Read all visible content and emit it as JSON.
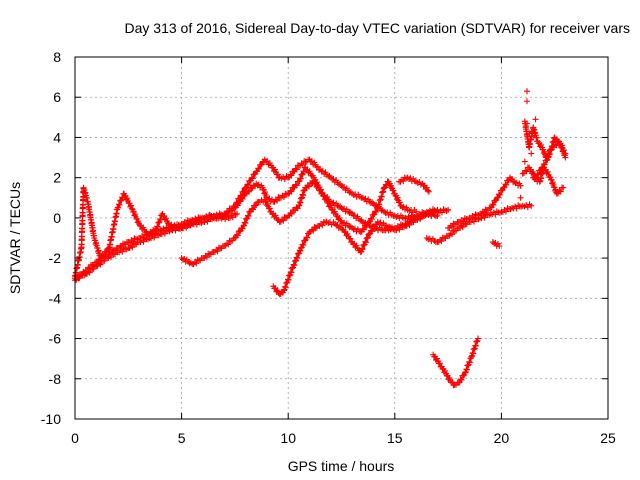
{
  "chart_data": {
    "type": "scatter",
    "title": "Day 313 of 2016, Sidereal Day-to-day VTEC variation (SDTVAR) for receiver vars",
    "xlabel": "GPS time / hours",
    "ylabel": "SDTVAR / TECUs",
    "xlim": [
      0,
      25
    ],
    "ylim": [
      -10,
      8
    ],
    "xticks": [
      0,
      5,
      10,
      15,
      20,
      25
    ],
    "yticks": [
      -10,
      -8,
      -6,
      -4,
      -2,
      0,
      2,
      4,
      6,
      8
    ],
    "grid": true,
    "marker": "+",
    "color": "#ff0000",
    "tracks": [
      [
        [
          0.0,
          -3.0
        ],
        [
          0.5,
          -2.8
        ],
        [
          1.0,
          -2.4
        ],
        [
          1.5,
          -2.0
        ],
        [
          2.0,
          -1.7
        ],
        [
          2.5,
          -1.5
        ],
        [
          3.0,
          -1.2
        ],
        [
          3.5,
          -1.0
        ],
        [
          4.0,
          -0.8
        ],
        [
          4.5,
          -0.6
        ],
        [
          5.0,
          -0.5
        ],
        [
          5.5,
          -0.3
        ],
        [
          6.0,
          -0.2
        ],
        [
          6.5,
          0.0
        ],
        [
          7.0,
          0.1
        ],
        [
          7.5,
          0.5
        ],
        [
          8.0,
          1.2
        ],
        [
          8.5,
          1.7
        ],
        [
          8.8,
          1.5
        ],
        [
          9.0,
          1.0
        ],
        [
          9.3,
          0.8
        ],
        [
          9.6,
          1.0
        ],
        [
          10.0,
          1.2
        ],
        [
          10.5,
          1.8
        ],
        [
          10.8,
          2.5
        ],
        [
          11.2,
          2.0
        ],
        [
          11.6,
          1.2
        ],
        [
          12.0,
          0.8
        ],
        [
          12.5,
          0.5
        ],
        [
          13.0,
          0.2
        ],
        [
          13.5,
          -0.2
        ],
        [
          14.0,
          -0.5
        ],
        [
          14.5,
          -0.6
        ],
        [
          15.0,
          -0.5
        ],
        [
          15.5,
          -0.3
        ],
        [
          16.0,
          0.0
        ],
        [
          16.5,
          0.2
        ],
        [
          17.0,
          0.3
        ],
        [
          17.5,
          0.4
        ]
      ],
      [
        [
          0.0,
          -3.1
        ],
        [
          0.5,
          -2.6
        ],
        [
          1.0,
          -2.2
        ],
        [
          1.5,
          -1.8
        ],
        [
          2.0,
          -1.5
        ],
        [
          2.5,
          -1.2
        ],
        [
          3.0,
          -1.0
        ],
        [
          3.5,
          -0.8
        ],
        [
          4.0,
          -0.6
        ],
        [
          4.5,
          -0.5
        ],
        [
          5.0,
          -0.3
        ],
        [
          5.5,
          -0.1
        ],
        [
          6.0,
          0.0
        ],
        [
          6.5,
          0.1
        ],
        [
          7.0,
          0.2
        ],
        [
          7.5,
          0.6
        ],
        [
          8.0,
          1.5
        ],
        [
          8.5,
          2.3
        ],
        [
          8.9,
          2.9
        ],
        [
          9.2,
          2.6
        ],
        [
          9.6,
          2.0
        ],
        [
          10.0,
          2.0
        ],
        [
          10.5,
          2.6
        ],
        [
          11.0,
          2.9
        ],
        [
          11.5,
          2.4
        ],
        [
          12.0,
          2.0
        ],
        [
          12.5,
          1.6
        ],
        [
          13.0,
          1.2
        ],
        [
          13.5,
          1.0
        ],
        [
          14.0,
          0.7
        ],
        [
          14.5,
          0.3
        ],
        [
          15.0,
          0.1
        ],
        [
          15.5,
          0.0
        ],
        [
          16.0,
          0.1
        ],
        [
          16.5,
          0.3
        ],
        [
          17.0,
          0.4
        ]
      ],
      [
        [
          0.0,
          -2.9
        ],
        [
          0.3,
          -1.5
        ],
        [
          0.4,
          1.5
        ],
        [
          0.6,
          0.8
        ],
        [
          0.9,
          -1.0
        ],
        [
          1.2,
          -2.0
        ],
        [
          1.6,
          -1.5
        ],
        [
          2.0,
          0.5
        ],
        [
          2.3,
          1.2
        ],
        [
          2.7,
          0.4
        ],
        [
          3.0,
          -0.3
        ],
        [
          3.4,
          -0.8
        ],
        [
          3.8,
          -0.6
        ],
        [
          4.1,
          0.2
        ],
        [
          4.4,
          -0.3
        ],
        [
          4.8,
          -0.5
        ],
        [
          5.2,
          -0.4
        ],
        [
          5.6,
          -0.2
        ],
        [
          6.0,
          0.0
        ],
        [
          6.4,
          0.1
        ],
        [
          6.8,
          0.0
        ],
        [
          7.2,
          0.0
        ],
        [
          7.6,
          0.2
        ]
      ],
      [
        [
          5.0,
          -2.0
        ],
        [
          5.5,
          -2.3
        ],
        [
          6.0,
          -2.0
        ],
        [
          6.5,
          -1.7
        ],
        [
          7.0,
          -1.4
        ],
        [
          7.5,
          -1.0
        ],
        [
          7.9,
          -0.4
        ],
        [
          8.2,
          0.3
        ],
        [
          8.6,
          0.8
        ],
        [
          8.9,
          0.9
        ],
        [
          9.2,
          0.3
        ],
        [
          9.6,
          -0.2
        ],
        [
          10.0,
          0.1
        ],
        [
          10.5,
          0.6
        ],
        [
          10.8,
          1.5
        ],
        [
          11.2,
          1.8
        ],
        [
          11.6,
          1.2
        ],
        [
          12.0,
          0.5
        ],
        [
          12.5,
          -0.2
        ],
        [
          13.0,
          -0.5
        ],
        [
          13.4,
          -0.7
        ],
        [
          13.8,
          -0.2
        ],
        [
          14.2,
          0.5
        ],
        [
          14.5,
          1.5
        ],
        [
          14.7,
          1.8
        ],
        [
          15.0,
          1.2
        ],
        [
          15.3,
          0.6
        ],
        [
          15.6,
          0.4
        ],
        [
          16.0,
          0.3
        ]
      ],
      [
        [
          9.3,
          -3.4
        ],
        [
          9.6,
          -3.8
        ],
        [
          9.8,
          -3.6
        ],
        [
          10.2,
          -2.5
        ],
        [
          10.6,
          -1.5
        ],
        [
          11.0,
          -0.7
        ],
        [
          11.4,
          -0.4
        ],
        [
          11.8,
          -0.2
        ],
        [
          12.2,
          -0.3
        ],
        [
          12.6,
          -0.6
        ],
        [
          13.0,
          -1.2
        ],
        [
          13.4,
          -1.7
        ],
        [
          13.8,
          -0.8
        ],
        [
          14.2,
          -0.2
        ],
        [
          14.6,
          -0.4
        ],
        [
          15.0,
          -0.6
        ],
        [
          15.5,
          -0.4
        ],
        [
          16.0,
          -0.1
        ],
        [
          16.5,
          0.2
        ],
        [
          17.0,
          0.1
        ]
      ],
      [
        [
          15.2,
          1.8
        ],
        [
          15.6,
          2.0
        ],
        [
          16.0,
          1.8
        ],
        [
          16.3,
          1.7
        ],
        [
          16.6,
          1.3
        ]
      ],
      [
        [
          16.5,
          -1.0
        ],
        [
          17.0,
          -1.2
        ],
        [
          17.5,
          -0.9
        ],
        [
          18.0,
          -0.5
        ],
        [
          18.5,
          -0.2
        ],
        [
          19.0,
          0.0
        ],
        [
          19.5,
          0.2
        ],
        [
          20.0,
          0.3
        ],
        [
          20.5,
          0.5
        ],
        [
          21.0,
          0.6
        ],
        [
          21.4,
          0.6
        ]
      ],
      [
        [
          17.5,
          -0.5
        ],
        [
          18.0,
          -0.2
        ],
        [
          18.5,
          0.0
        ],
        [
          19.0,
          0.2
        ],
        [
          19.5,
          0.5
        ],
        [
          19.8,
          1.0
        ],
        [
          20.1,
          1.5
        ],
        [
          20.4,
          2.0
        ],
        [
          20.6,
          1.8
        ],
        [
          20.9,
          1.6
        ]
      ],
      [
        [
          16.8,
          -6.8
        ],
        [
          17.2,
          -7.4
        ],
        [
          17.6,
          -8.1
        ],
        [
          17.8,
          -8.3
        ],
        [
          18.0,
          -8.2
        ],
        [
          18.3,
          -7.7
        ],
        [
          18.6,
          -6.9
        ],
        [
          18.9,
          -6.0
        ]
      ],
      [
        [
          19.6,
          -1.2
        ],
        [
          19.9,
          -1.4
        ]
      ],
      [
        [
          21.1,
          4.8
        ],
        [
          21.3,
          3.5
        ],
        [
          21.5,
          4.5
        ],
        [
          21.7,
          3.8
        ],
        [
          21.9,
          3.5
        ],
        [
          22.1,
          3.0
        ],
        [
          22.4,
          3.5
        ],
        [
          22.7,
          3.8
        ],
        [
          23.0,
          3.2
        ]
      ],
      [
        [
          21.0,
          2.2
        ],
        [
          21.3,
          2.5
        ],
        [
          21.6,
          2.0
        ],
        [
          21.9,
          2.5
        ],
        [
          22.2,
          3.0
        ],
        [
          22.5,
          4.0
        ],
        [
          22.8,
          3.6
        ],
        [
          23.0,
          3.0
        ]
      ],
      [
        [
          21.5,
          2.0
        ],
        [
          21.8,
          1.8
        ],
        [
          22.0,
          2.5
        ],
        [
          22.3,
          2.0
        ],
        [
          22.6,
          1.2
        ],
        [
          22.9,
          1.5
        ]
      ]
    ],
    "outliers": [
      [
        21.2,
        6.3
      ],
      [
        21.2,
        5.8
      ],
      [
        21.2,
        4.7
      ],
      [
        21.3,
        4.2
      ],
      [
        21.6,
        4.9
      ],
      [
        21.1,
        2.8
      ],
      [
        21.4,
        3.2
      ],
      [
        21.5,
        2.2
      ],
      [
        20.9,
        1.0
      ]
    ]
  }
}
